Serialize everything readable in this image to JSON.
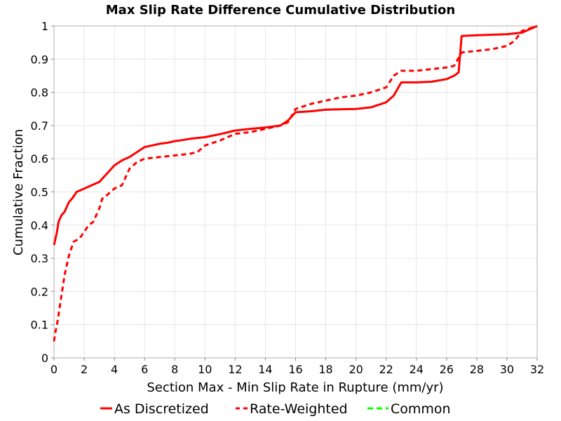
{
  "chart_data": {
    "type": "line",
    "title": "Max Slip Rate Difference Cumulative Distribution",
    "xlabel": "Section Max - Min Slip Rate in Rupture (mm/yr)",
    "ylabel": "Cumulative Fraction",
    "xlim": [
      0,
      32
    ],
    "ylim": [
      0,
      1
    ],
    "xticks": [
      0,
      2,
      4,
      6,
      8,
      10,
      12,
      14,
      16,
      18,
      20,
      22,
      24,
      26,
      28,
      30,
      32
    ],
    "yticks": [
      "0",
      "0.1",
      "0.2",
      "0.3",
      "0.4",
      "0.5",
      "0.6",
      "0.7",
      "0.8",
      "0.9",
      "1"
    ],
    "grid": true,
    "legend_position": "bottom",
    "series": [
      {
        "name": "As Discretized",
        "color": "#ff0000",
        "style": "solid",
        "x": [
          0,
          0.1,
          0.2,
          0.3,
          0.5,
          0.7,
          0.9,
          1.0,
          1.2,
          1.5,
          2.0,
          2.5,
          3.0,
          3.5,
          4.0,
          4.5,
          5.0,
          5.5,
          6.0,
          6.5,
          7.0,
          7.5,
          8.0,
          8.5,
          9.0,
          10.0,
          11.0,
          12.0,
          13.0,
          14.0,
          15.0,
          15.5,
          16.0,
          17.0,
          18.0,
          20.0,
          21.0,
          22.0,
          22.5,
          23.0,
          24.0,
          25.0,
          26.0,
          26.5,
          26.8,
          27.0,
          28.0,
          30.0,
          31.0,
          31.5,
          32.0
        ],
        "y": [
          0.34,
          0.36,
          0.38,
          0.41,
          0.43,
          0.44,
          0.46,
          0.47,
          0.48,
          0.5,
          0.51,
          0.52,
          0.53,
          0.555,
          0.58,
          0.595,
          0.605,
          0.62,
          0.635,
          0.64,
          0.645,
          0.648,
          0.653,
          0.656,
          0.66,
          0.665,
          0.674,
          0.685,
          0.69,
          0.694,
          0.7,
          0.715,
          0.74,
          0.743,
          0.748,
          0.75,
          0.755,
          0.77,
          0.79,
          0.83,
          0.83,
          0.832,
          0.84,
          0.85,
          0.86,
          0.97,
          0.972,
          0.975,
          0.98,
          0.99,
          1.0
        ]
      },
      {
        "name": "Rate-Weighted",
        "color": "#ff0000",
        "style": "dashed",
        "x": [
          0,
          0.1,
          0.2,
          0.3,
          0.5,
          0.7,
          1.0,
          1.3,
          1.7,
          2.0,
          2.3,
          2.6,
          3.0,
          3.2,
          3.5,
          4.0,
          4.5,
          5.0,
          5.5,
          6.0,
          7.0,
          8.0,
          9.0,
          9.5,
          10.0,
          11.0,
          12.0,
          13.0,
          14.0,
          15.0,
          15.5,
          16.0,
          17.0,
          18.0,
          19.0,
          20.0,
          21.0,
          22.0,
          22.5,
          23.0,
          24.0,
          25.0,
          26.0,
          26.5,
          27.0,
          28.0,
          29.0,
          30.0,
          30.5,
          31.0,
          32.0
        ],
        "y": [
          0.05,
          0.08,
          0.1,
          0.13,
          0.19,
          0.25,
          0.31,
          0.35,
          0.36,
          0.38,
          0.4,
          0.41,
          0.45,
          0.48,
          0.49,
          0.51,
          0.52,
          0.57,
          0.59,
          0.6,
          0.605,
          0.61,
          0.615,
          0.62,
          0.64,
          0.655,
          0.675,
          0.68,
          0.69,
          0.7,
          0.71,
          0.75,
          0.765,
          0.775,
          0.785,
          0.79,
          0.8,
          0.815,
          0.85,
          0.865,
          0.865,
          0.87,
          0.875,
          0.88,
          0.92,
          0.925,
          0.93,
          0.94,
          0.955,
          0.985,
          1.0
        ]
      },
      {
        "name": "Common",
        "color": "#00ff00",
        "style": "dashed",
        "x": [],
        "y": []
      }
    ]
  }
}
